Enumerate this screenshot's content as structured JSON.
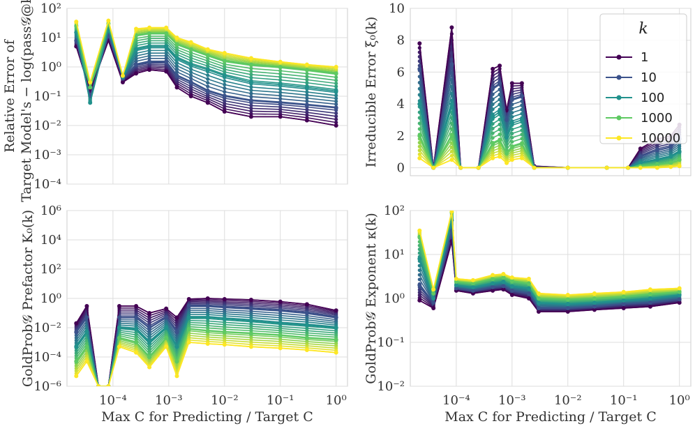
{
  "chart_data": [
    {
      "panel": "top-left",
      "type": "line",
      "ylabel_line1": "Relative Error of",
      "ylabel_line2": "Target Model's − log(pass𝒢@k)",
      "xlabel": "",
      "xscale": "log",
      "yscale": "log",
      "xlim": [
        1.5e-05,
        1.6
      ],
      "ylim": [
        0.0001,
        100
      ],
      "xticks": [
        "10⁻⁴",
        "10⁻³",
        "10⁻²",
        "10⁻¹",
        "10⁰"
      ],
      "yticks": [
        "10⁻⁴",
        "10⁻³",
        "10⁻²",
        "10⁻¹",
        "10⁰",
        "10¹",
        "10²"
      ],
      "series": [
        {
          "name": "1",
          "x": [
            2.2e-05,
            3.9e-05,
            8.3e-05,
            0.00015,
            0.00026,
            0.00045,
            0.0009,
            0.0014,
            0.0025,
            0.005,
            0.01,
            0.03,
            0.1,
            0.3,
            1.0
          ],
          "y": [
            5,
            0.15,
            8,
            0.3,
            0.6,
            0.8,
            0.7,
            0.2,
            0.1,
            0.06,
            0.03,
            0.02,
            0.02,
            0.015,
            0.01
          ]
        },
        {
          "name": "10",
          "x": [
            2.2e-05,
            3.9e-05,
            8.3e-05,
            0.00015,
            0.00026,
            0.00045,
            0.0009,
            0.0014,
            0.0025,
            0.005,
            0.01,
            0.03,
            0.1,
            0.3,
            1.0
          ],
          "y": [
            8,
            0.1,
            12,
            0.4,
            1.2,
            1.5,
            1.5,
            0.5,
            0.3,
            0.15,
            0.1,
            0.07,
            0.06,
            0.05,
            0.04
          ]
        },
        {
          "name": "100",
          "x": [
            2.2e-05,
            3.9e-05,
            8.3e-05,
            0.00015,
            0.00026,
            0.00045,
            0.0009,
            0.0014,
            0.0025,
            0.005,
            0.01,
            0.03,
            0.1,
            0.3,
            1.0
          ],
          "y": [
            15,
            0.06,
            20,
            0.45,
            4,
            5,
            5,
            2,
            1.2,
            0.8,
            0.5,
            0.3,
            0.25,
            0.2,
            0.15
          ]
        },
        {
          "name": "1000",
          "x": [
            2.2e-05,
            3.9e-05,
            8.3e-05,
            0.00015,
            0.00026,
            0.00045,
            0.0009,
            0.0014,
            0.0025,
            0.005,
            0.01,
            0.03,
            0.1,
            0.3,
            1.0
          ],
          "y": [
            25,
            0.2,
            30,
            0.5,
            12,
            14,
            14,
            6,
            4,
            2.5,
            1.6,
            1.2,
            1.0,
            0.8,
            0.6
          ]
        },
        {
          "name": "10000",
          "x": [
            2.2e-05,
            3.9e-05,
            8.3e-05,
            0.00015,
            0.00026,
            0.00045,
            0.0009,
            0.0014,
            0.0025,
            0.005,
            0.01,
            0.03,
            0.1,
            0.3,
            1.0
          ],
          "y": [
            35,
            0.3,
            38,
            0.5,
            20,
            22,
            22,
            10,
            7,
            4,
            3,
            2,
            1.5,
            1.2,
            1.0
          ]
        }
      ]
    },
    {
      "panel": "top-right",
      "type": "line",
      "ylabel": "Irreducible Error ξ₀(k)",
      "xlabel": "",
      "xscale": "log",
      "yscale": "linear",
      "xlim": [
        1.5e-05,
        1.6
      ],
      "ylim": [
        -0.5,
        10
      ],
      "xticks": [
        "10⁻⁴",
        "10⁻³",
        "10⁻²",
        "10⁻¹",
        "10⁰"
      ],
      "yticks": [
        "0",
        "2",
        "4",
        "6",
        "8",
        "10"
      ],
      "series": [
        {
          "name": "1",
          "x": [
            2.2e-05,
            3.9e-05,
            8.3e-05,
            0.00012,
            0.00025,
            0.00045,
            0.0006,
            0.0008,
            0.001,
            0.0015,
            0.0025,
            0.01,
            0.05,
            0.12,
            0.2,
            0.4,
            0.7,
            1.0
          ],
          "y": [
            7.8,
            0,
            8.8,
            0,
            0,
            6.2,
            6.4,
            3.6,
            5.3,
            5.3,
            0.1,
            0,
            0,
            0,
            1.2,
            1.8,
            2.0,
            2.7
          ]
        },
        {
          "name": "10",
          "x": [
            2.2e-05,
            3.9e-05,
            8.3e-05,
            0.00012,
            0.00025,
            0.00045,
            0.0006,
            0.0008,
            0.001,
            0.0015,
            0.0025,
            0.01,
            0.05,
            0.12,
            0.2,
            0.4,
            0.7,
            1.0
          ],
          "y": [
            6.2,
            0,
            6.5,
            0,
            0,
            5.0,
            5.3,
            3.0,
            4.3,
            4.5,
            0.05,
            0,
            0,
            0,
            0.7,
            1.1,
            1.3,
            1.8
          ]
        },
        {
          "name": "100",
          "x": [
            2.2e-05,
            3.9e-05,
            8.3e-05,
            0.00012,
            0.00025,
            0.00045,
            0.0006,
            0.0008,
            0.001,
            0.0015,
            0.0025,
            0.01,
            0.05,
            0.12,
            0.2,
            0.4,
            0.7,
            1.0
          ],
          "y": [
            4.0,
            0,
            4.0,
            0,
            0,
            3.2,
            3.5,
            1.9,
            2.8,
            3.0,
            0,
            0,
            0,
            0,
            0.3,
            0.5,
            0.7,
            1.0
          ]
        },
        {
          "name": "1000",
          "x": [
            2.2e-05,
            3.9e-05,
            8.3e-05,
            0.00012,
            0.00025,
            0.00045,
            0.0006,
            0.0008,
            0.001,
            0.0015,
            0.0025,
            0.01,
            0.05,
            0.12,
            0.2,
            0.4,
            0.7,
            1.0
          ],
          "y": [
            2.0,
            0,
            2.0,
            0,
            0,
            1.5,
            1.7,
            0.9,
            1.3,
            1.5,
            0,
            0,
            0,
            0,
            0.1,
            0.2,
            0.3,
            0.5
          ]
        },
        {
          "name": "10000",
          "x": [
            2.2e-05,
            3.9e-05,
            8.3e-05,
            0.00012,
            0.00025,
            0.00045,
            0.0006,
            0.0008,
            0.001,
            0.0015,
            0.0025,
            0.01,
            0.05,
            0.12,
            0.2,
            0.4,
            0.7,
            1.0
          ],
          "y": [
            0.6,
            0,
            0.5,
            0,
            0,
            0.6,
            0.7,
            0.3,
            0.5,
            0.6,
            0,
            0,
            0,
            0,
            0,
            0,
            0.05,
            0.1
          ]
        }
      ],
      "legend": {
        "title": "k",
        "placement": "top-right",
        "entries": [
          "1",
          "10",
          "100",
          "1000",
          "10000"
        ]
      }
    },
    {
      "panel": "bottom-left",
      "type": "line",
      "ylabel": "GoldProb𝒢 Prefactor K₀(k)",
      "xlabel": "Max C for Predicting / Target C",
      "xscale": "log",
      "yscale": "log",
      "xlim": [
        1.5e-05,
        1.6
      ],
      "ylim": [
        1e-06,
        1000000.0
      ],
      "xticks": [
        "10⁻⁴",
        "10⁻³",
        "10⁻²",
        "10⁻¹",
        "10⁰"
      ],
      "yticks": [
        "10⁻⁶",
        "10⁻⁴",
        "10⁻²",
        "10⁰",
        "10²",
        "10⁴",
        "10⁶"
      ],
      "series": [
        {
          "name": "1",
          "x": [
            2.2e-05,
            3.4e-05,
            5.5e-05,
            8.3e-05,
            0.00013,
            0.00026,
            0.00045,
            0.0009,
            0.0014,
            0.0023,
            0.005,
            0.01,
            0.03,
            0.1,
            0.3,
            1.0
          ],
          "y": [
            0.02,
            0.3,
            1e-06,
            1e-06,
            0.3,
            0.3,
            0.1,
            0.2,
            0.05,
            0.9,
            1.0,
            0.9,
            0.8,
            0.6,
            0.4,
            0.15
          ]
        },
        {
          "name": "10",
          "x": [
            2.2e-05,
            3.4e-05,
            5.5e-05,
            8.3e-05,
            0.00013,
            0.00026,
            0.00045,
            0.0009,
            0.0014,
            0.0023,
            0.005,
            0.01,
            0.03,
            0.1,
            0.3,
            1.0
          ],
          "y": [
            0.005,
            0.05,
            1e-06,
            1e-06,
            0.05,
            0.05,
            0.01,
            0.05,
            0.005,
            0.3,
            0.3,
            0.25,
            0.2,
            0.15,
            0.1,
            0.05
          ]
        },
        {
          "name": "100",
          "x": [
            2.2e-05,
            3.4e-05,
            5.5e-05,
            8.3e-05,
            0.00013,
            0.00026,
            0.00045,
            0.0009,
            0.0014,
            0.0023,
            0.005,
            0.01,
            0.03,
            0.1,
            0.3,
            1.0
          ],
          "y": [
            0.0005,
            0.005,
            1e-06,
            1e-06,
            0.01,
            0.008,
            0.001,
            0.01,
            0.0005,
            0.05,
            0.05,
            0.04,
            0.03,
            0.02,
            0.015,
            0.01
          ]
        },
        {
          "name": "1000",
          "x": [
            2.2e-05,
            3.4e-05,
            5.5e-05,
            8.3e-05,
            0.00013,
            0.00026,
            0.00045,
            0.0009,
            0.0014,
            0.0023,
            0.005,
            0.01,
            0.03,
            0.1,
            0.3,
            1.0
          ],
          "y": [
            5e-05,
            0.0005,
            1e-06,
            1e-06,
            0.002,
            0.001,
            0.0001,
            0.002,
            5e-05,
            0.008,
            0.006,
            0.005,
            0.004,
            0.003,
            0.002,
            0.0015
          ]
        },
        {
          "name": "10000",
          "x": [
            2.2e-05,
            3.4e-05,
            5.5e-05,
            8.3e-05,
            0.00013,
            0.00026,
            0.00045,
            0.0009,
            0.0014,
            0.0023,
            0.005,
            0.01,
            0.03,
            0.1,
            0.3,
            1.0
          ],
          "y": [
            5e-06,
            5e-05,
            1e-06,
            1e-06,
            0.0005,
            0.0002,
            2e-05,
            0.0005,
            5e-06,
            0.001,
            0.0008,
            0.0007,
            0.0005,
            0.0004,
            0.0003,
            0.0002
          ]
        }
      ]
    },
    {
      "panel": "bottom-right",
      "type": "line",
      "ylabel": "GoldProb𝒢 Exponent κ(k)",
      "xlabel": "Max C for Predicting / Target C",
      "xscale": "log",
      "yscale": "log",
      "xlim": [
        1.5e-05,
        1.6
      ],
      "ylim": [
        0.01,
        100
      ],
      "xticks": [
        "10⁻⁴",
        "10⁻³",
        "10⁻²",
        "10⁻¹",
        "10⁰"
      ],
      "yticks": [
        "10⁻²",
        "10⁻¹",
        "10⁰",
        "10¹",
        "10²"
      ],
      "series": [
        {
          "name": "1",
          "x": [
            2.2e-05,
            3.9e-05,
            8.3e-05,
            0.0001,
            0.0002,
            0.00045,
            0.0007,
            0.001,
            0.002,
            0.003,
            0.01,
            0.03,
            0.1,
            0.3,
            1.0
          ],
          "y": [
            0.9,
            0.6,
            20,
            1.5,
            1.3,
            1.5,
            1.6,
            1.2,
            1.0,
            0.5,
            0.5,
            0.55,
            0.6,
            0.65,
            0.8
          ]
        },
        {
          "name": "10",
          "x": [
            2.2e-05,
            3.9e-05,
            8.3e-05,
            0.0001,
            0.0002,
            0.00045,
            0.0007,
            0.001,
            0.002,
            0.003,
            0.01,
            0.03,
            0.1,
            0.3,
            1.0
          ],
          "y": [
            2,
            0.8,
            35,
            1.7,
            1.5,
            1.8,
            1.9,
            1.5,
            1.3,
            0.6,
            0.6,
            0.65,
            0.75,
            0.8,
            0.95
          ]
        },
        {
          "name": "100",
          "x": [
            2.2e-05,
            3.9e-05,
            8.3e-05,
            0.0001,
            0.0002,
            0.00045,
            0.0007,
            0.001,
            0.002,
            0.003,
            0.01,
            0.03,
            0.1,
            0.3,
            1.0
          ],
          "y": [
            8,
            1.0,
            60,
            2.0,
            1.8,
            2.2,
            2.4,
            1.9,
            1.7,
            0.8,
            0.75,
            0.8,
            0.9,
            1.0,
            1.2
          ]
        },
        {
          "name": "1000",
          "x": [
            2.2e-05,
            3.9e-05,
            8.3e-05,
            0.0001,
            0.0002,
            0.00045,
            0.0007,
            0.001,
            0.002,
            0.003,
            0.01,
            0.03,
            0.1,
            0.3,
            1.0
          ],
          "y": [
            25,
            1.3,
            90,
            2.4,
            2.2,
            2.8,
            3.0,
            2.5,
            2.2,
            1.0,
            0.95,
            1.0,
            1.1,
            1.25,
            1.4
          ]
        },
        {
          "name": "10000",
          "x": [
            2.2e-05,
            3.9e-05,
            8.3e-05,
            0.0001,
            0.0002,
            0.00045,
            0.0007,
            0.001,
            0.002,
            0.003,
            0.01,
            0.03,
            0.1,
            0.3,
            1.0
          ],
          "y": [
            35,
            1.6,
            95,
            2.8,
            2.6,
            3.4,
            3.6,
            3.0,
            2.8,
            1.3,
            1.2,
            1.3,
            1.4,
            1.6,
            1.7
          ]
        }
      ]
    }
  ],
  "colors": {
    "1": "#440154",
    "10": "#3b528b",
    "100": "#21918c",
    "1000": "#5ec962",
    "10000": "#fde725",
    "grid": "#dddddd",
    "axis": "#cccccc"
  }
}
